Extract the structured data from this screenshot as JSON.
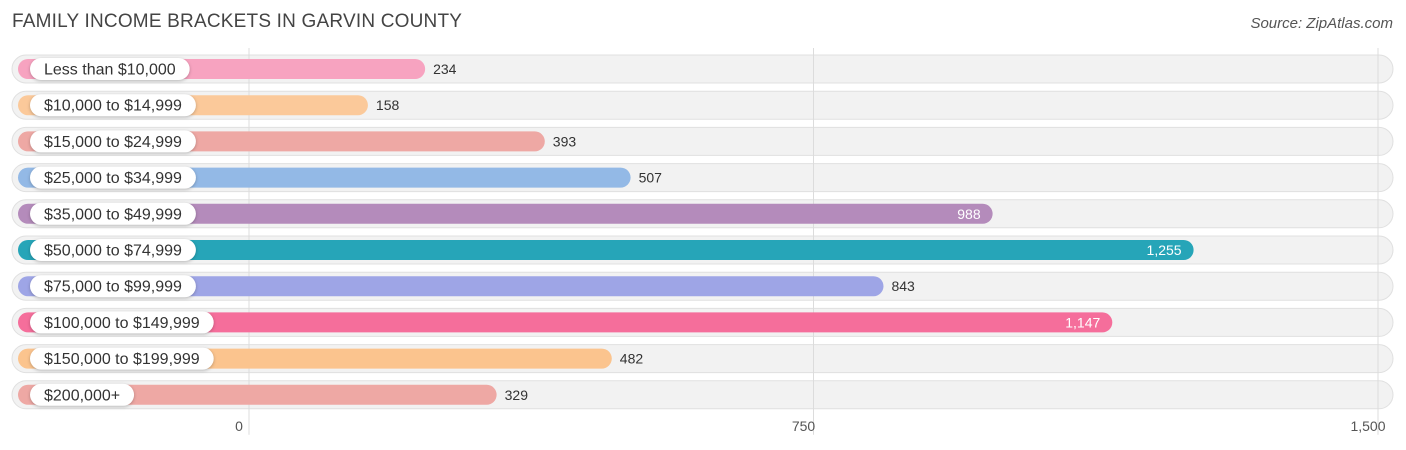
{
  "chart_data": {
    "type": "bar",
    "orientation": "horizontal",
    "title": "FAMILY INCOME BRACKETS IN GARVIN COUNTY",
    "source": "Source: ZipAtlas.com",
    "categories": [
      "Less than $10,000",
      "$10,000 to $14,999",
      "$15,000 to $24,999",
      "$25,000 to $34,999",
      "$35,000 to $49,999",
      "$50,000 to $74,999",
      "$75,000 to $99,999",
      "$100,000 to $149,999",
      "$150,000 to $199,999",
      "$200,000+"
    ],
    "values": [
      234,
      158,
      393,
      507,
      988,
      1255,
      843,
      1147,
      482,
      329
    ],
    "value_labels": [
      "234",
      "158",
      "393",
      "507",
      "988",
      "1,255",
      "843",
      "1,147",
      "482",
      "329"
    ],
    "colors": [
      "#f7a3c0",
      "#fbc99a",
      "#eea8a4",
      "#93b9e6",
      "#b48bbb",
      "#26a5b8",
      "#9ea5e6",
      "#f56e9b",
      "#fbc48e",
      "#eea8a4"
    ],
    "xlim": [
      0,
      1500
    ],
    "ticks": [
      0,
      750,
      1500
    ],
    "tick_labels": [
      "0",
      "750",
      "1,500"
    ],
    "xlabel": "",
    "ylabel": "",
    "grid": true
  }
}
